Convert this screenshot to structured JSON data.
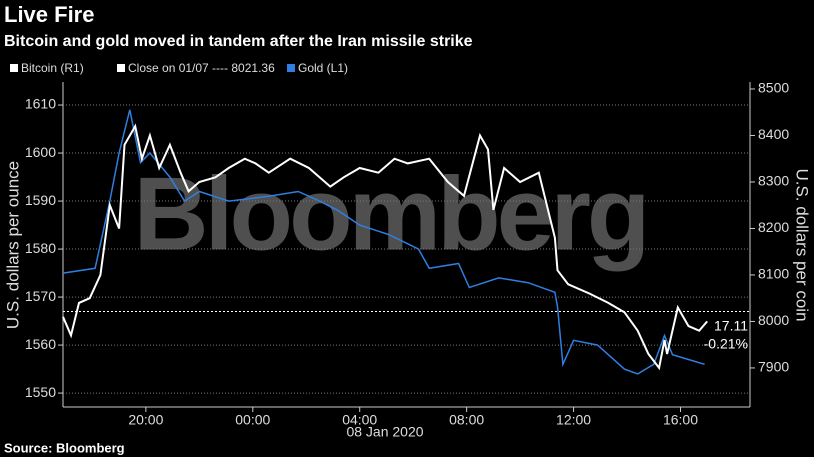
{
  "chart_data": {
    "type": "line",
    "title": "Live Fire",
    "subtitle": "Bitcoin and gold moved in tandem after the Iran missile strike",
    "watermark": "Bloomberg",
    "source": "Source: Bloomberg",
    "xlabel": "08 Jan 2020",
    "ylabel": "U.S. dollars per ounce",
    "y2label": "U.S. dollars per coin",
    "legend": [
      "Bitcoin (R1)",
      "Close on 01/07 ---- 8021.36",
      "Gold (L1)"
    ],
    "reference_line": {
      "value": 8021.36,
      "axis": "y2"
    },
    "annotations": [
      "17.11",
      "-0.21%"
    ],
    "grid": true,
    "xlim": [
      16.9,
      42.6
    ],
    "xticks": [
      {
        "value": 20,
        "label": "20:00"
      },
      {
        "value": 24,
        "label": "00:00"
      },
      {
        "value": 28,
        "label": "04:00"
      },
      {
        "value": 32,
        "label": "08:00"
      },
      {
        "value": 36,
        "label": "12:00"
      },
      {
        "value": 40,
        "label": "16:00"
      }
    ],
    "ylim": [
      1547.1,
      1614.8
    ],
    "yticks": [
      1550,
      1560,
      1570,
      1580,
      1590,
      1600,
      1610
    ],
    "y2lim": [
      7816,
      8515
    ],
    "y2ticks": [
      7900,
      8000,
      8100,
      8200,
      8300,
      8400,
      8500
    ],
    "series": [
      {
        "name": "Bitcoin (R1)",
        "color": "#ffffff",
        "axis": "y2",
        "x": [
          16.9,
          17.2,
          17.5,
          17.9,
          18.3,
          18.65,
          19.0,
          19.2,
          19.6,
          19.85,
          20.15,
          20.5,
          20.9,
          21.3,
          21.6,
          22.0,
          22.6,
          23.1,
          23.7,
          24.1,
          24.6,
          25.4,
          26.1,
          26.9,
          27.4,
          28.0,
          28.7,
          29.3,
          29.8,
          30.6,
          31.3,
          31.9,
          32.5,
          32.8,
          33.0,
          33.4,
          34.0,
          34.7,
          35.3,
          35.4,
          35.8,
          36.6,
          37.3,
          37.9,
          38.4,
          38.8,
          39.2,
          39.4,
          39.5,
          39.9,
          40.3,
          40.7,
          41.0
        ],
        "values": [
          8010,
          7970,
          8040,
          8050,
          8100,
          8250,
          8200,
          8380,
          8420,
          8350,
          8400,
          8330,
          8380,
          8320,
          8280,
          8300,
          8310,
          8330,
          8350,
          8340,
          8320,
          8350,
          8330,
          8290,
          8310,
          8330,
          8320,
          8350,
          8340,
          8350,
          8300,
          8270,
          8400,
          8370,
          8240,
          8330,
          8300,
          8320,
          8180,
          8110,
          8080,
          8060,
          8040,
          8020,
          7980,
          7930,
          7900,
          7960,
          7930,
          8030,
          7990,
          7980,
          8000
        ]
      },
      {
        "name": "Gold (L1)",
        "color": "#2f7fe0",
        "x": [
          16.9,
          18.1,
          18.65,
          19.0,
          19.4,
          19.8,
          20.15,
          20.9,
          21.45,
          22.0,
          23.1,
          24.6,
          25.7,
          26.5,
          27.2,
          28.0,
          29.1,
          30.2,
          30.6,
          31.7,
          32.1,
          33.2,
          34.3,
          35.3,
          35.4,
          35.6,
          36.0,
          36.9,
          37.9,
          38.4,
          39.0,
          39.4,
          39.7,
          40.3,
          40.9
        ],
        "values": [
          1575,
          1576,
          1590,
          1600,
          1609,
          1598,
          1600,
          1595,
          1590,
          1592,
          1590,
          1591,
          1592,
          1590,
          1588,
          1585,
          1583,
          1580,
          1576,
          1577,
          1572,
          1574,
          1573,
          1571,
          1568,
          1556,
          1561,
          1560,
          1555,
          1554,
          1556,
          1562,
          1558,
          1557,
          1556
        ]
      }
    ]
  }
}
